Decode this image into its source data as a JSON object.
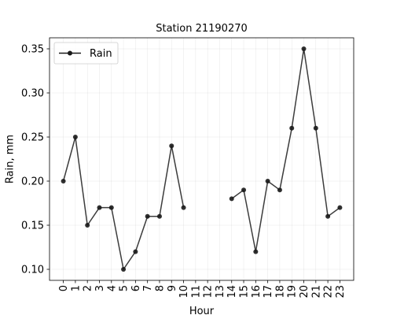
{
  "chart_data": {
    "type": "line",
    "title": "Station 21190270",
    "xlabel": "Hour",
    "ylabel": "Rain, mm",
    "x": [
      0,
      1,
      2,
      3,
      4,
      5,
      6,
      7,
      8,
      9,
      10,
      11,
      12,
      13,
      14,
      15,
      16,
      17,
      18,
      19,
      20,
      21,
      22,
      23
    ],
    "x_tick_labels": [
      "0",
      "1",
      "2",
      "3",
      "4",
      "5",
      "6",
      "7",
      "8",
      "9",
      "10",
      "11",
      "12",
      "13",
      "14",
      "15",
      "16",
      "17",
      "18",
      "19",
      "20",
      "21",
      "22",
      "23"
    ],
    "y_ticks": [
      0.1,
      0.15,
      0.2,
      0.25,
      0.3,
      0.35
    ],
    "y_tick_labels": [
      "0.10",
      "0.15",
      "0.20",
      "0.25",
      "0.30",
      "0.35"
    ],
    "xlim": [
      -1.15,
      24.15
    ],
    "ylim": [
      0.0875,
      0.3625
    ],
    "grid": true,
    "legend_position": "upper-left",
    "series": [
      {
        "name": "Rain",
        "color": "#1a1a1a",
        "marker": "circle",
        "values": [
          0.2,
          0.25,
          0.15,
          0.17,
          0.17,
          0.1,
          0.12,
          0.16,
          0.16,
          0.24,
          0.17,
          null,
          null,
          null,
          0.18,
          0.19,
          0.12,
          0.2,
          0.19,
          0.26,
          0.35,
          0.26,
          0.16,
          0.17
        ]
      }
    ]
  }
}
